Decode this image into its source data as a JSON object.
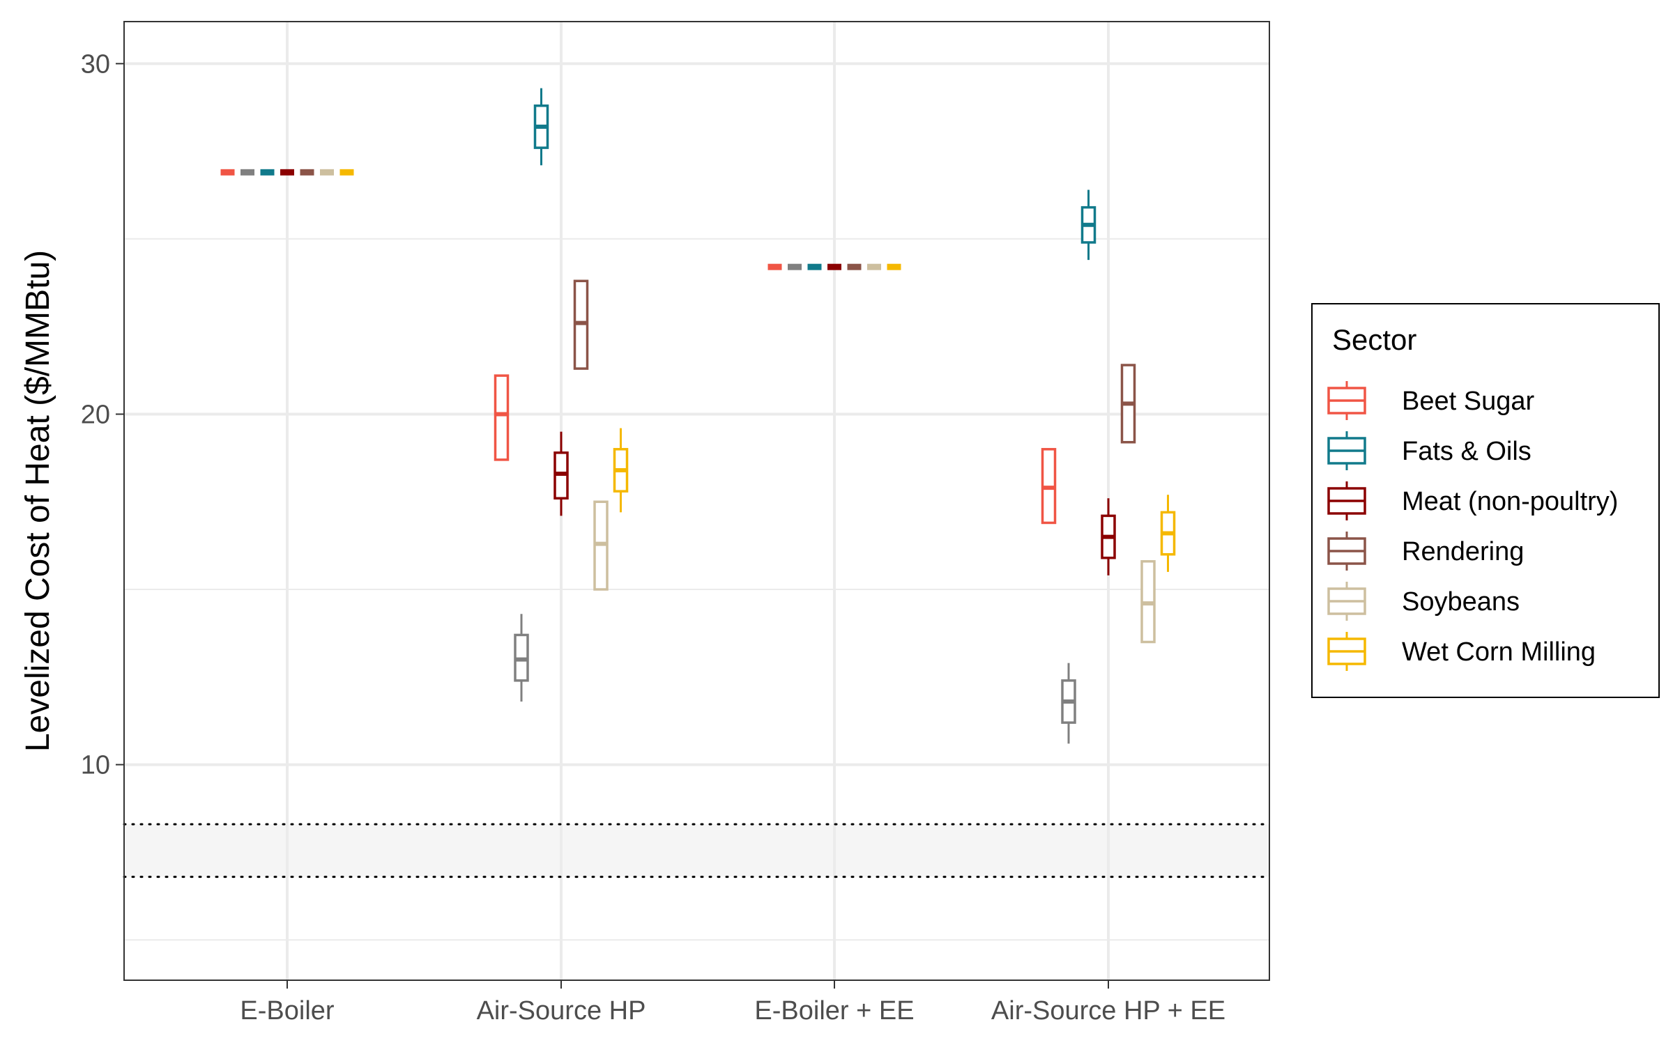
{
  "chart_data": {
    "type": "box",
    "title": "",
    "xlabel": "",
    "ylabel": "Levelized Cost of Heat ($/MMBtu)",
    "ylim": [
      3.85,
      31.2
    ],
    "y_ticks": [
      10,
      20,
      30
    ],
    "y_minor_gridlines": [
      5,
      15,
      25
    ],
    "grid": true,
    "categories": [
      "E-Boiler",
      "Air-Source HP",
      "E-Boiler + EE",
      "Air-Source HP + EE"
    ],
    "reference_band": {
      "ymin": 6.8,
      "ymax": 8.3,
      "style": "dotted lines with light gray fill"
    },
    "legend": {
      "title": "Sector",
      "position": "right"
    },
    "series": [
      {
        "name": "Beet Sugar",
        "color": "#F05545",
        "boxes": [
          {
            "min": 26.9,
            "q1": 26.9,
            "median": 26.9,
            "q3": 26.9,
            "max": 26.9
          },
          {
            "min": 18.7,
            "q1": 18.7,
            "median": 20.0,
            "q3": 21.1,
            "max": 21.1
          },
          {
            "min": 24.2,
            "q1": 24.2,
            "median": 24.2,
            "q3": 24.2,
            "max": 24.2
          },
          {
            "min": 16.9,
            "q1": 16.9,
            "median": 17.9,
            "q3": 19.0,
            "max": 19.0
          }
        ]
      },
      {
        "name": "",
        "color": "#808080",
        "boxes": [
          {
            "min": 26.9,
            "q1": 26.9,
            "median": 26.9,
            "q3": 26.9,
            "max": 26.9
          },
          {
            "min": 11.8,
            "q1": 12.4,
            "median": 13.0,
            "q3": 13.7,
            "max": 14.3
          },
          {
            "min": 24.2,
            "q1": 24.2,
            "median": 24.2,
            "q3": 24.2,
            "max": 24.2
          },
          {
            "min": 10.6,
            "q1": 11.2,
            "median": 11.8,
            "q3": 12.4,
            "max": 12.9
          }
        ]
      },
      {
        "name": "Fats & Oils",
        "color": "#117A8B",
        "boxes": [
          {
            "min": 26.9,
            "q1": 26.9,
            "median": 26.9,
            "q3": 26.9,
            "max": 26.9
          },
          {
            "min": 27.1,
            "q1": 27.6,
            "median": 28.2,
            "q3": 28.8,
            "max": 29.3
          },
          {
            "min": 24.2,
            "q1": 24.2,
            "median": 24.2,
            "q3": 24.2,
            "max": 24.2
          },
          {
            "min": 24.4,
            "q1": 24.9,
            "median": 25.4,
            "q3": 25.9,
            "max": 26.4
          }
        ]
      },
      {
        "name": "Meat (non-poultry)",
        "color": "#8B0000",
        "boxes": [
          {
            "min": 26.9,
            "q1": 26.9,
            "median": 26.9,
            "q3": 26.9,
            "max": 26.9
          },
          {
            "min": 17.1,
            "q1": 17.6,
            "median": 18.3,
            "q3": 18.9,
            "max": 19.5
          },
          {
            "min": 24.2,
            "q1": 24.2,
            "median": 24.2,
            "q3": 24.2,
            "max": 24.2
          },
          {
            "min": 15.4,
            "q1": 15.9,
            "median": 16.5,
            "q3": 17.1,
            "max": 17.6
          }
        ]
      },
      {
        "name": "Rendering",
        "color": "#8B5448",
        "boxes": [
          {
            "min": 26.9,
            "q1": 26.9,
            "median": 26.9,
            "q3": 26.9,
            "max": 26.9
          },
          {
            "min": 21.3,
            "q1": 21.3,
            "median": 22.6,
            "q3": 23.8,
            "max": 23.8
          },
          {
            "min": 24.2,
            "q1": 24.2,
            "median": 24.2,
            "q3": 24.2,
            "max": 24.2
          },
          {
            "min": 19.2,
            "q1": 19.2,
            "median": 20.3,
            "q3": 21.4,
            "max": 21.4
          }
        ]
      },
      {
        "name": "Soybeans",
        "color": "#CDBF9F",
        "boxes": [
          {
            "min": 26.9,
            "q1": 26.9,
            "median": 26.9,
            "q3": 26.9,
            "max": 26.9
          },
          {
            "min": 15.0,
            "q1": 15.0,
            "median": 16.3,
            "q3": 17.5,
            "max": 17.5
          },
          {
            "min": 24.2,
            "q1": 24.2,
            "median": 24.2,
            "q3": 24.2,
            "max": 24.2
          },
          {
            "min": 13.5,
            "q1": 13.5,
            "median": 14.6,
            "q3": 15.8,
            "max": 15.8
          }
        ]
      },
      {
        "name": "Wet Corn Milling",
        "color": "#F5B800",
        "boxes": [
          {
            "min": 26.9,
            "q1": 26.9,
            "median": 26.9,
            "q3": 26.9,
            "max": 26.9
          },
          {
            "min": 17.2,
            "q1": 17.8,
            "median": 18.4,
            "q3": 19.0,
            "max": 19.6
          },
          {
            "min": 24.2,
            "q1": 24.2,
            "median": 24.2,
            "q3": 24.2,
            "max": 24.2
          },
          {
            "min": 15.5,
            "q1": 16.0,
            "median": 16.6,
            "q3": 17.2,
            "max": 17.7
          }
        ]
      }
    ]
  }
}
